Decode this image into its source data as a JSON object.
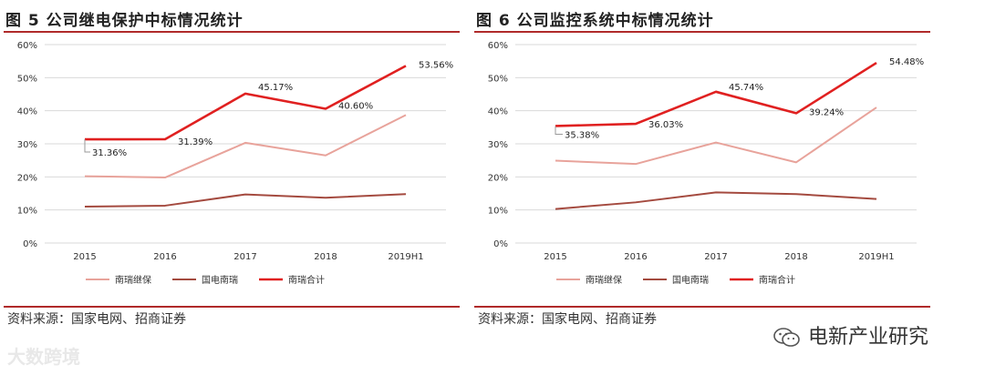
{
  "colors": {
    "accent": "#b02a2a",
    "series_red": "#e02020",
    "series_pink": "#e8a39b",
    "series_brown": "#a44a3f",
    "grid": "#d9d9d9"
  },
  "charts": [
    {
      "title": "图 5  公司继电保护中标情况统计",
      "source": "资料来源：国家电网、招商证券"
    },
    {
      "title": "图 6 公司监控系统中标情况统计",
      "source": "资料来源：国家电网、招商证券"
    }
  ],
  "chart_data": [
    {
      "type": "line",
      "title": "图 5  公司继电保护中标情况统计",
      "categories": [
        "2015",
        "2016",
        "2017",
        "2018",
        "2019H1"
      ],
      "ylim": [
        0,
        60
      ],
      "yticks": [
        "0%",
        "10%",
        "20%",
        "30%",
        "40%",
        "50%",
        "60%"
      ],
      "series": [
        {
          "name": "南瑞继保",
          "values": [
            20.2,
            19.8,
            30.3,
            26.5,
            38.7
          ]
        },
        {
          "name": "国电南瑞",
          "values": [
            11.0,
            11.3,
            14.7,
            13.7,
            14.8
          ]
        },
        {
          "name": "南瑞合计",
          "values": [
            31.36,
            31.39,
            45.17,
            40.6,
            53.56
          ],
          "labels": [
            "31.36%",
            "31.39%",
            "45.17%",
            "40.60%",
            "53.56%"
          ]
        }
      ]
    },
    {
      "type": "line",
      "title": "图 6 公司监控系统中标情况统计",
      "categories": [
        "2015",
        "2016",
        "2017",
        "2018",
        "2019H1"
      ],
      "ylim": [
        0,
        60
      ],
      "yticks": [
        "0%",
        "10%",
        "20%",
        "30%",
        "40%",
        "50%",
        "60%"
      ],
      "series": [
        {
          "name": "南瑞继保",
          "values": [
            24.9,
            23.9,
            30.4,
            24.4,
            41.0
          ]
        },
        {
          "name": "国电南瑞",
          "values": [
            10.3,
            12.3,
            15.3,
            14.8,
            13.3
          ]
        },
        {
          "name": "南瑞合计",
          "values": [
            35.38,
            36.03,
            45.74,
            39.24,
            54.48
          ],
          "labels": [
            "35.38%",
            "36.03%",
            "45.74%",
            "39.24%",
            "54.48%"
          ]
        }
      ]
    }
  ],
  "footer": {
    "brand": "电新产业研究",
    "watermark": "大数跨境"
  }
}
